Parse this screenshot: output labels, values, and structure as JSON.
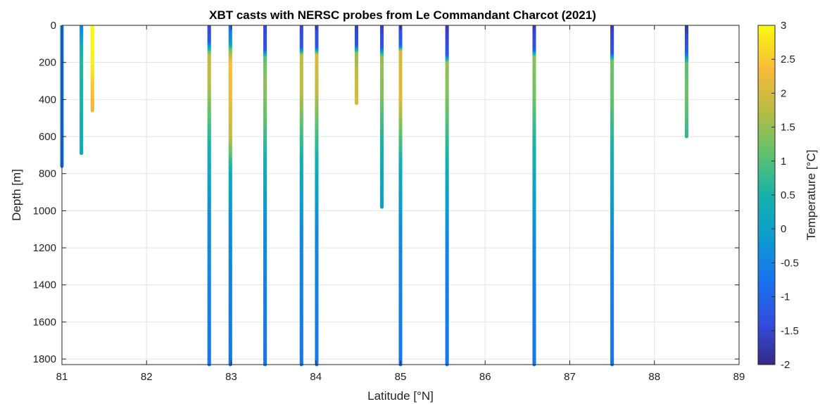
{
  "chart_data": {
    "type": "scatter",
    "title": "XBT casts with NERSC probes from Le Commandant Charcot (2021)",
    "xlabel": "Latitude [°N]",
    "ylabel": "Depth [m]",
    "colorbar_label": "Temperature [°C]",
    "xlim": [
      81,
      89
    ],
    "ylim": [
      1830,
      0
    ],
    "y_reversed": true,
    "grid": true,
    "xticks": [
      81,
      82,
      83,
      84,
      85,
      86,
      87,
      88,
      89
    ],
    "yticks": [
      0,
      200,
      400,
      600,
      800,
      1000,
      1200,
      1400,
      1600,
      1800
    ],
    "xtick_labels": [
      "81",
      "82",
      "83",
      "84",
      "85",
      "86",
      "87",
      "88",
      "89"
    ],
    "ytick_labels": [
      "0",
      "200",
      "400",
      "600",
      "800",
      "1000",
      "1200",
      "1400",
      "1600",
      "1800"
    ],
    "colorbar": {
      "range": [
        -2,
        3
      ],
      "ticks": [
        -2,
        -1.5,
        -1,
        -0.5,
        0,
        0.5,
        1,
        1.5,
        2,
        2.5,
        3
      ],
      "tick_labels": [
        "-2",
        "-1.5",
        "-1",
        "-0.5",
        "0",
        "0.5",
        "1",
        "1.5",
        "2",
        "2.5",
        "3"
      ],
      "colormap": "parula"
    },
    "casts": [
      {
        "lat": 81.0,
        "max_depth": 760,
        "profile": [
          [
            0,
            -0.6
          ],
          [
            760,
            -0.7
          ]
        ]
      },
      {
        "lat": 81.23,
        "max_depth": 690,
        "profile": [
          [
            0,
            -0.6
          ],
          [
            40,
            -0.3
          ],
          [
            120,
            0.4
          ],
          [
            200,
            0.6
          ],
          [
            400,
            0.5
          ],
          [
            690,
            0.2
          ]
        ]
      },
      {
        "lat": 81.36,
        "max_depth": 460,
        "profile": [
          [
            0,
            3.0
          ],
          [
            200,
            2.9
          ],
          [
            320,
            2.5
          ],
          [
            460,
            2.2
          ]
        ]
      },
      {
        "lat": 82.74,
        "max_depth": 1830,
        "profile": [
          [
            0,
            -1.5
          ],
          [
            90,
            -1.2
          ],
          [
            120,
            0.2
          ],
          [
            160,
            1.8
          ],
          [
            300,
            1.8
          ],
          [
            450,
            1.2
          ],
          [
            700,
            0.3
          ],
          [
            1000,
            -0.3
          ],
          [
            1830,
            -0.7
          ]
        ]
      },
      {
        "lat": 82.99,
        "max_depth": 1830,
        "profile": [
          [
            0,
            -1.0
          ],
          [
            100,
            0.0
          ],
          [
            130,
            1.2
          ],
          [
            200,
            2.4
          ],
          [
            400,
            2.2
          ],
          [
            600,
            1.8
          ],
          [
            800,
            0.2
          ],
          [
            1100,
            -0.4
          ],
          [
            1830,
            -0.7
          ]
        ]
      },
      {
        "lat": 83.4,
        "max_depth": 1830,
        "profile": [
          [
            0,
            -1.5
          ],
          [
            130,
            -1.2
          ],
          [
            170,
            1.0
          ],
          [
            300,
            1.5
          ],
          [
            500,
            1.1
          ],
          [
            800,
            0.2
          ],
          [
            1100,
            -0.4
          ],
          [
            1830,
            -0.7
          ]
        ]
      },
      {
        "lat": 83.83,
        "max_depth": 1830,
        "profile": [
          [
            0,
            -1.5
          ],
          [
            120,
            -1.2
          ],
          [
            160,
            1.8
          ],
          [
            350,
            1.8
          ],
          [
            550,
            1.0
          ],
          [
            800,
            0.2
          ],
          [
            1100,
            -0.4
          ],
          [
            1830,
            -0.7
          ]
        ]
      },
      {
        "lat": 84.01,
        "max_depth": 1830,
        "profile": [
          [
            0,
            -1.5
          ],
          [
            120,
            -1.2
          ],
          [
            160,
            2.1
          ],
          [
            350,
            1.8
          ],
          [
            550,
            1.0
          ],
          [
            800,
            0.2
          ],
          [
            1100,
            -0.4
          ],
          [
            1830,
            -0.7
          ]
        ]
      },
      {
        "lat": 84.48,
        "max_depth": 420,
        "profile": [
          [
            0,
            -1.6
          ],
          [
            110,
            -1.2
          ],
          [
            150,
            1.5
          ],
          [
            300,
            1.9
          ],
          [
            420,
            2.0
          ]
        ]
      },
      {
        "lat": 84.78,
        "max_depth": 980,
        "profile": [
          [
            0,
            -1.6
          ],
          [
            120,
            -1.2
          ],
          [
            170,
            1.5
          ],
          [
            350,
            1.4
          ],
          [
            600,
            0.6
          ],
          [
            800,
            0.2
          ],
          [
            980,
            0.0
          ]
        ]
      },
      {
        "lat": 85.0,
        "max_depth": 1830,
        "profile": [
          [
            0,
            -1.5
          ],
          [
            110,
            -1.0
          ],
          [
            140,
            2.0
          ],
          [
            400,
            2.1
          ],
          [
            600,
            1.0
          ],
          [
            800,
            0.2
          ],
          [
            1100,
            -0.4
          ],
          [
            1830,
            -0.7
          ]
        ]
      },
      {
        "lat": 85.55,
        "max_depth": 1830,
        "profile": [
          [
            0,
            -1.7
          ],
          [
            160,
            -1.2
          ],
          [
            200,
            1.5
          ],
          [
            350,
            1.4
          ],
          [
            600,
            0.8
          ],
          [
            900,
            0.0
          ],
          [
            1200,
            -0.5
          ],
          [
            1830,
            -0.7
          ]
        ]
      },
      {
        "lat": 86.58,
        "max_depth": 1830,
        "profile": [
          [
            0,
            -1.7
          ],
          [
            130,
            -1.2
          ],
          [
            170,
            1.4
          ],
          [
            400,
            1.2
          ],
          [
            600,
            0.6
          ],
          [
            900,
            0.0
          ],
          [
            1200,
            -0.5
          ],
          [
            1830,
            -0.7
          ]
        ]
      },
      {
        "lat": 87.5,
        "max_depth": 1830,
        "profile": [
          [
            0,
            -1.7
          ],
          [
            150,
            -1.2
          ],
          [
            190,
            1.2
          ],
          [
            400,
            1.1
          ],
          [
            650,
            0.5
          ],
          [
            900,
            0.0
          ],
          [
            1200,
            -0.5
          ],
          [
            1830,
            -0.7
          ]
        ]
      },
      {
        "lat": 88.38,
        "max_depth": 600,
        "profile": [
          [
            0,
            -1.8
          ],
          [
            150,
            -1.0
          ],
          [
            200,
            1.0
          ],
          [
            350,
            1.2
          ],
          [
            500,
            1.0
          ],
          [
            600,
            0.7
          ]
        ]
      }
    ]
  }
}
